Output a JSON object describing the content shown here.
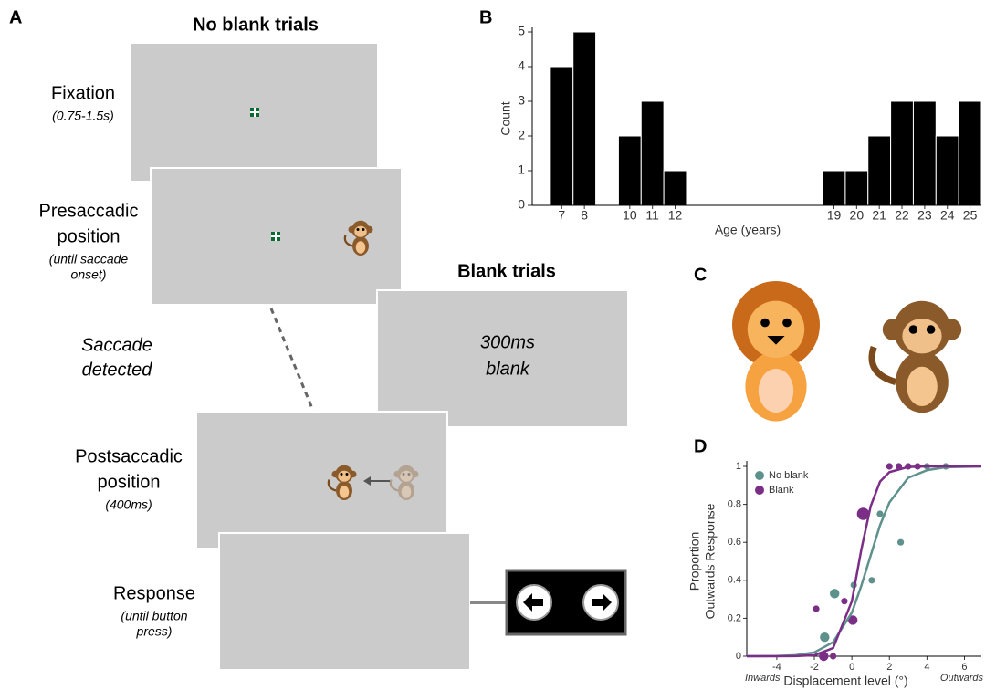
{
  "panel_a": {
    "label": "A",
    "no_blank_title": "No blank trials",
    "blank_title": "Blank trials",
    "steps": [
      {
        "lines": [
          "Fixation"
        ],
        "note": [
          "(0.75-1.5s)"
        ]
      },
      {
        "lines": [
          "Presaccadic",
          "position"
        ],
        "note": [
          "(until saccade",
          "onset)"
        ]
      },
      {
        "lines": [
          "Postsaccadic",
          "position"
        ],
        "note": [
          "(400ms)"
        ]
      },
      {
        "lines": [
          "Response"
        ],
        "note": [
          "(until button",
          "press)"
        ]
      }
    ],
    "saccade": [
      "Saccade",
      "detected"
    ],
    "blank_screen": [
      "300ms",
      "blank"
    ]
  },
  "panel_c": {
    "label": "C"
  },
  "chart_data": [
    {
      "type": "bar",
      "panel": "B",
      "xlabel": "Age (years)",
      "ylabel": "Count",
      "color": "#000000",
      "x": [
        7,
        8,
        10,
        11,
        12,
        19,
        20,
        21,
        22,
        23,
        24,
        25
      ],
      "values": [
        4,
        5,
        2,
        3,
        1,
        1,
        1,
        2,
        3,
        3,
        2,
        3
      ],
      "xlim": [
        5.7,
        25.5
      ],
      "xticks": [
        7,
        8,
        10,
        11,
        12,
        19,
        20,
        21,
        22,
        23,
        24,
        25
      ],
      "ylim": [
        0,
        5
      ],
      "yticks": [
        0,
        1,
        2,
        3,
        4,
        5
      ]
    },
    {
      "type": "scatter",
      "panel": "D",
      "xlabel": "Displacement level (°)",
      "ylabel": [
        "Proportion",
        "Outwards Response"
      ],
      "annotations": [
        "Inwards",
        "Outwards"
      ],
      "legend": "upper left",
      "xlim": [
        -5.6,
        6.9
      ],
      "xticks": [
        -4,
        -2,
        0,
        2,
        4,
        6
      ],
      "ylim": [
        0,
        1
      ],
      "yticks": [
        0,
        0.2,
        0.4,
        0.6,
        0.8,
        1
      ],
      "series": [
        {
          "name": "No blank",
          "color": "#5f918c",
          "x": [
            -1.45,
            -0.92,
            0.1,
            1.06,
            1.5,
            2.6,
            4,
            5
          ],
          "values": [
            0.1,
            0.33,
            0.375,
            0.4,
            0.75,
            0.6,
            1,
            1
          ],
          "sizes": [
            2,
            2,
            1,
            1,
            1,
            1,
            1,
            1
          ]
        },
        {
          "name": "Blank",
          "color": "#7b2e86",
          "x": [
            -1.9,
            -1.5,
            -1,
            -0.4,
            0.05,
            0.6,
            2,
            2.5,
            3,
            3.5
          ],
          "values": [
            0.25,
            0,
            0,
            0.29,
            0.19,
            0.75,
            1,
            1,
            1,
            1
          ],
          "sizes": [
            1,
            2,
            1,
            1,
            2,
            3,
            1,
            1,
            1,
            1
          ]
        },
        {
          "mode": "line",
          "color": "#5f918c",
          "x": [
            -5.6,
            -4,
            -3,
            -2,
            -1,
            0,
            0.5,
            1,
            1.5,
            2,
            3,
            4,
            5,
            6.9
          ],
          "values": [
            0,
            0.0015,
            0.0055,
            0.02,
            0.074,
            0.23,
            0.37,
            0.53,
            0.69,
            0.81,
            0.94,
            0.98,
            0.996,
            1
          ]
        },
        {
          "mode": "line",
          "color": "#7b2e86",
          "x": [
            -5.6,
            -4,
            -3,
            -2,
            -1,
            0,
            0.5,
            1,
            1.5,
            2,
            3,
            4,
            5,
            6.9
          ],
          "values": [
            0,
            0,
            0.0005,
            0.005,
            0.043,
            0.29,
            0.56,
            0.79,
            0.92,
            0.97,
            0.997,
            1,
            1,
            1
          ]
        }
      ]
    }
  ]
}
